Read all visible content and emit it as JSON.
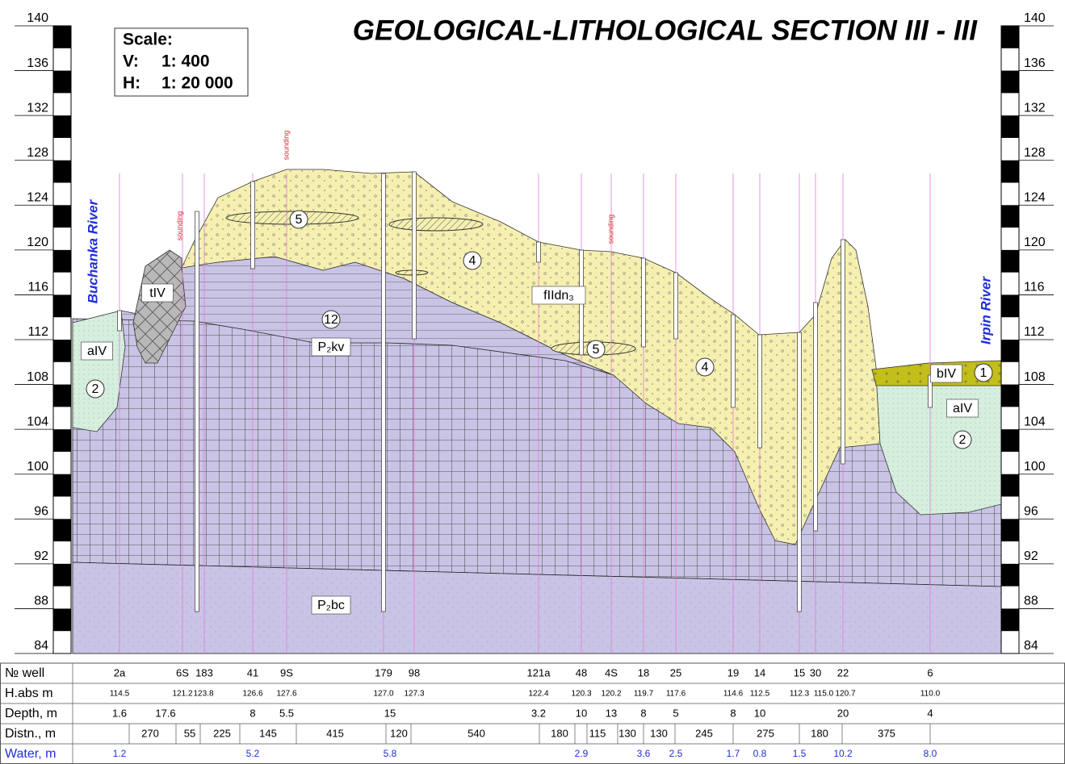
{
  "title": "GEOLOGICAL-LITHOLOGICAL SECTION III - III",
  "scale": {
    "heading": "Scale:",
    "vertical": "V:",
    "vertical_value": "1: 400",
    "horizontal": "H:",
    "horizontal_value": "1: 20 000"
  },
  "elevation_ticks": [
    140,
    136,
    132,
    128,
    124,
    120,
    116,
    112,
    108,
    104,
    100,
    96,
    92,
    88,
    84
  ],
  "rivers": [
    "Buchanka River",
    "Irpin River"
  ],
  "soundings": [
    "sounding",
    "sounding",
    "sounding"
  ],
  "layer_labels": [
    "5",
    "5",
    "4",
    "4",
    "fIIdn₃",
    "12",
    "P₂kv",
    "P₂bc",
    "aIV",
    "2",
    "tIV",
    "bIV",
    "1",
    "aIV",
    "2"
  ],
  "table": {
    "row_headers": [
      "№   well",
      "H.abs m",
      "Depth, m",
      "Distn., m",
      "Water, m"
    ],
    "wells": [
      "2a",
      "6S",
      "183",
      "41",
      "9S",
      "179",
      "98",
      "121a",
      "48",
      "4S",
      "18",
      "25",
      "19",
      "14",
      "15",
      "30",
      "22",
      "6"
    ],
    "h_abs": [
      "114.5",
      "121.2",
      "123.8",
      "126.6",
      "127.6",
      "127.0",
      "127.3",
      "122.4",
      "120.3",
      "120.2",
      "119.7",
      "117.6",
      "114.6",
      "112.5",
      "112.3",
      "115.0",
      "120.7",
      "110.0"
    ],
    "depth": [
      "1.6",
      "17.6",
      "8",
      "5.5",
      "15",
      "3.2",
      "10",
      "13",
      "8",
      "5",
      "8",
      "10",
      "20",
      "4"
    ],
    "distance": [
      "270",
      "55",
      "225",
      "145",
      "415",
      "120",
      "540",
      "180",
      "115",
      "130",
      "130",
      "245",
      "275",
      "180",
      "375"
    ],
    "water": [
      "1.2",
      "5.2",
      "5.8",
      "2.9",
      "3.6",
      "2.5",
      "1.7",
      "0.8",
      "1.5",
      "10.2",
      "8.0"
    ]
  }
}
